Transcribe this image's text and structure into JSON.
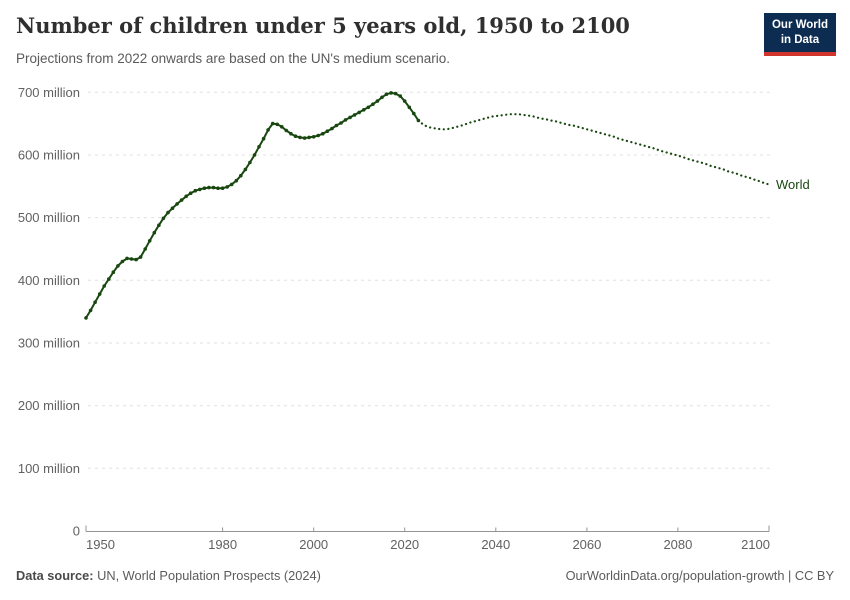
{
  "header": {
    "title": "Number of children under 5 years old, 1950 to 2100",
    "subtitle": "Projections from 2022 onwards are based on the UN's medium scenario.",
    "logo": {
      "line1": "Our World",
      "line2": "in Data",
      "bg_color": "#0c2d51",
      "stripe_color": "#d0342c"
    }
  },
  "footer": {
    "source_label": "Data source:",
    "source_rest": " UN, World Population Prospects (2024)",
    "citation": "OurWorldinData.org/population-growth | CC BY"
  },
  "chart_data": {
    "type": "line",
    "title": "Number of children under 5 years old, 1950 to 2100",
    "subtitle": "Projections from 2022 onwards are based on the UN's medium scenario.",
    "entity_label": "World",
    "unit": "million children",
    "line_color": "#18470f",
    "grid": true,
    "grid_color": "#e0e0e0",
    "axis_color": "#949494",
    "tick_text_color": "#616161",
    "xlim": [
      1950,
      2100
    ],
    "ylim": [
      0,
      700
    ],
    "x_ticks": [
      1950,
      1980,
      2000,
      2020,
      2040,
      2060,
      2080,
      2100
    ],
    "x_tick_labels": [
      "1950",
      "1980",
      "2000",
      "2020",
      "2040",
      "2060",
      "2080",
      "2100"
    ],
    "y_ticks": [
      0,
      100,
      200,
      300,
      400,
      500,
      600,
      700
    ],
    "y_tick_labels": [
      "0",
      "100 million",
      "200 million",
      "300 million",
      "400 million",
      "500 million",
      "600 million",
      "700 million"
    ],
    "series": [
      {
        "name": "World (estimates)",
        "style": "solid",
        "years": [
          1950,
          1951,
          1952,
          1953,
          1954,
          1955,
          1956,
          1957,
          1958,
          1959,
          1960,
          1961,
          1962,
          1963,
          1964,
          1965,
          1966,
          1967,
          1968,
          1969,
          1970,
          1971,
          1972,
          1973,
          1974,
          1975,
          1976,
          1977,
          1978,
          1979,
          1980,
          1981,
          1982,
          1983,
          1984,
          1985,
          1986,
          1987,
          1988,
          1989,
          1990,
          1991,
          1992,
          1993,
          1994,
          1995,
          1996,
          1997,
          1998,
          1999,
          2000,
          2001,
          2002,
          2003,
          2004,
          2005,
          2006,
          2007,
          2008,
          2009,
          2010,
          2011,
          2012,
          2013,
          2014,
          2015,
          2016,
          2017,
          2018,
          2019,
          2020,
          2021,
          2022,
          2023
        ],
        "values": [
          340,
          352,
          365,
          378,
          391,
          402,
          413,
          423,
          430,
          435,
          434,
          433,
          437,
          450,
          463,
          476,
          488,
          499,
          508,
          515,
          522,
          528,
          534,
          539,
          543,
          545,
          547,
          548,
          548,
          547,
          547,
          549,
          553,
          559,
          567,
          577,
          588,
          600,
          613,
          626,
          640,
          650,
          649,
          645,
          639,
          634,
          630,
          628,
          627,
          628,
          629,
          631,
          634,
          638,
          642,
          647,
          651,
          656,
          660,
          664,
          668,
          672,
          676,
          681,
          686,
          692,
          697,
          699,
          698,
          694,
          686,
          676,
          666,
          655
        ]
      },
      {
        "name": "World (UN medium projection)",
        "style": "dotted",
        "years": [
          2023,
          2024,
          2025,
          2026,
          2027,
          2028,
          2029,
          2030,
          2031,
          2032,
          2033,
          2034,
          2035,
          2036,
          2037,
          2038,
          2039,
          2040,
          2041,
          2042,
          2043,
          2044,
          2045,
          2046,
          2047,
          2048,
          2049,
          2050,
          2051,
          2052,
          2053,
          2054,
          2055,
          2056,
          2057,
          2058,
          2059,
          2060,
          2061,
          2062,
          2063,
          2064,
          2065,
          2066,
          2067,
          2068,
          2069,
          2070,
          2071,
          2072,
          2073,
          2074,
          2075,
          2076,
          2077,
          2078,
          2079,
          2080,
          2081,
          2082,
          2083,
          2084,
          2085,
          2086,
          2087,
          2088,
          2089,
          2090,
          2091,
          2092,
          2093,
          2094,
          2095,
          2096,
          2097,
          2098,
          2099,
          2100
        ],
        "values": [
          655,
          649,
          645,
          643,
          642,
          641,
          641,
          642,
          644,
          646,
          648,
          651,
          653,
          655,
          657,
          659,
          661,
          662,
          663,
          664,
          665,
          665,
          665,
          664,
          663,
          662,
          660,
          658,
          657,
          655,
          654,
          652,
          650,
          648,
          647,
          645,
          643,
          641,
          639,
          637,
          635,
          633,
          631,
          629,
          626,
          624,
          622,
          620,
          618,
          616,
          614,
          612,
          610,
          607,
          605,
          603,
          601,
          599,
          597,
          594,
          592,
          590,
          588,
          586,
          583,
          581,
          579,
          577,
          574,
          572,
          570,
          567,
          565,
          563,
          560,
          558,
          555,
          553
        ]
      }
    ]
  }
}
